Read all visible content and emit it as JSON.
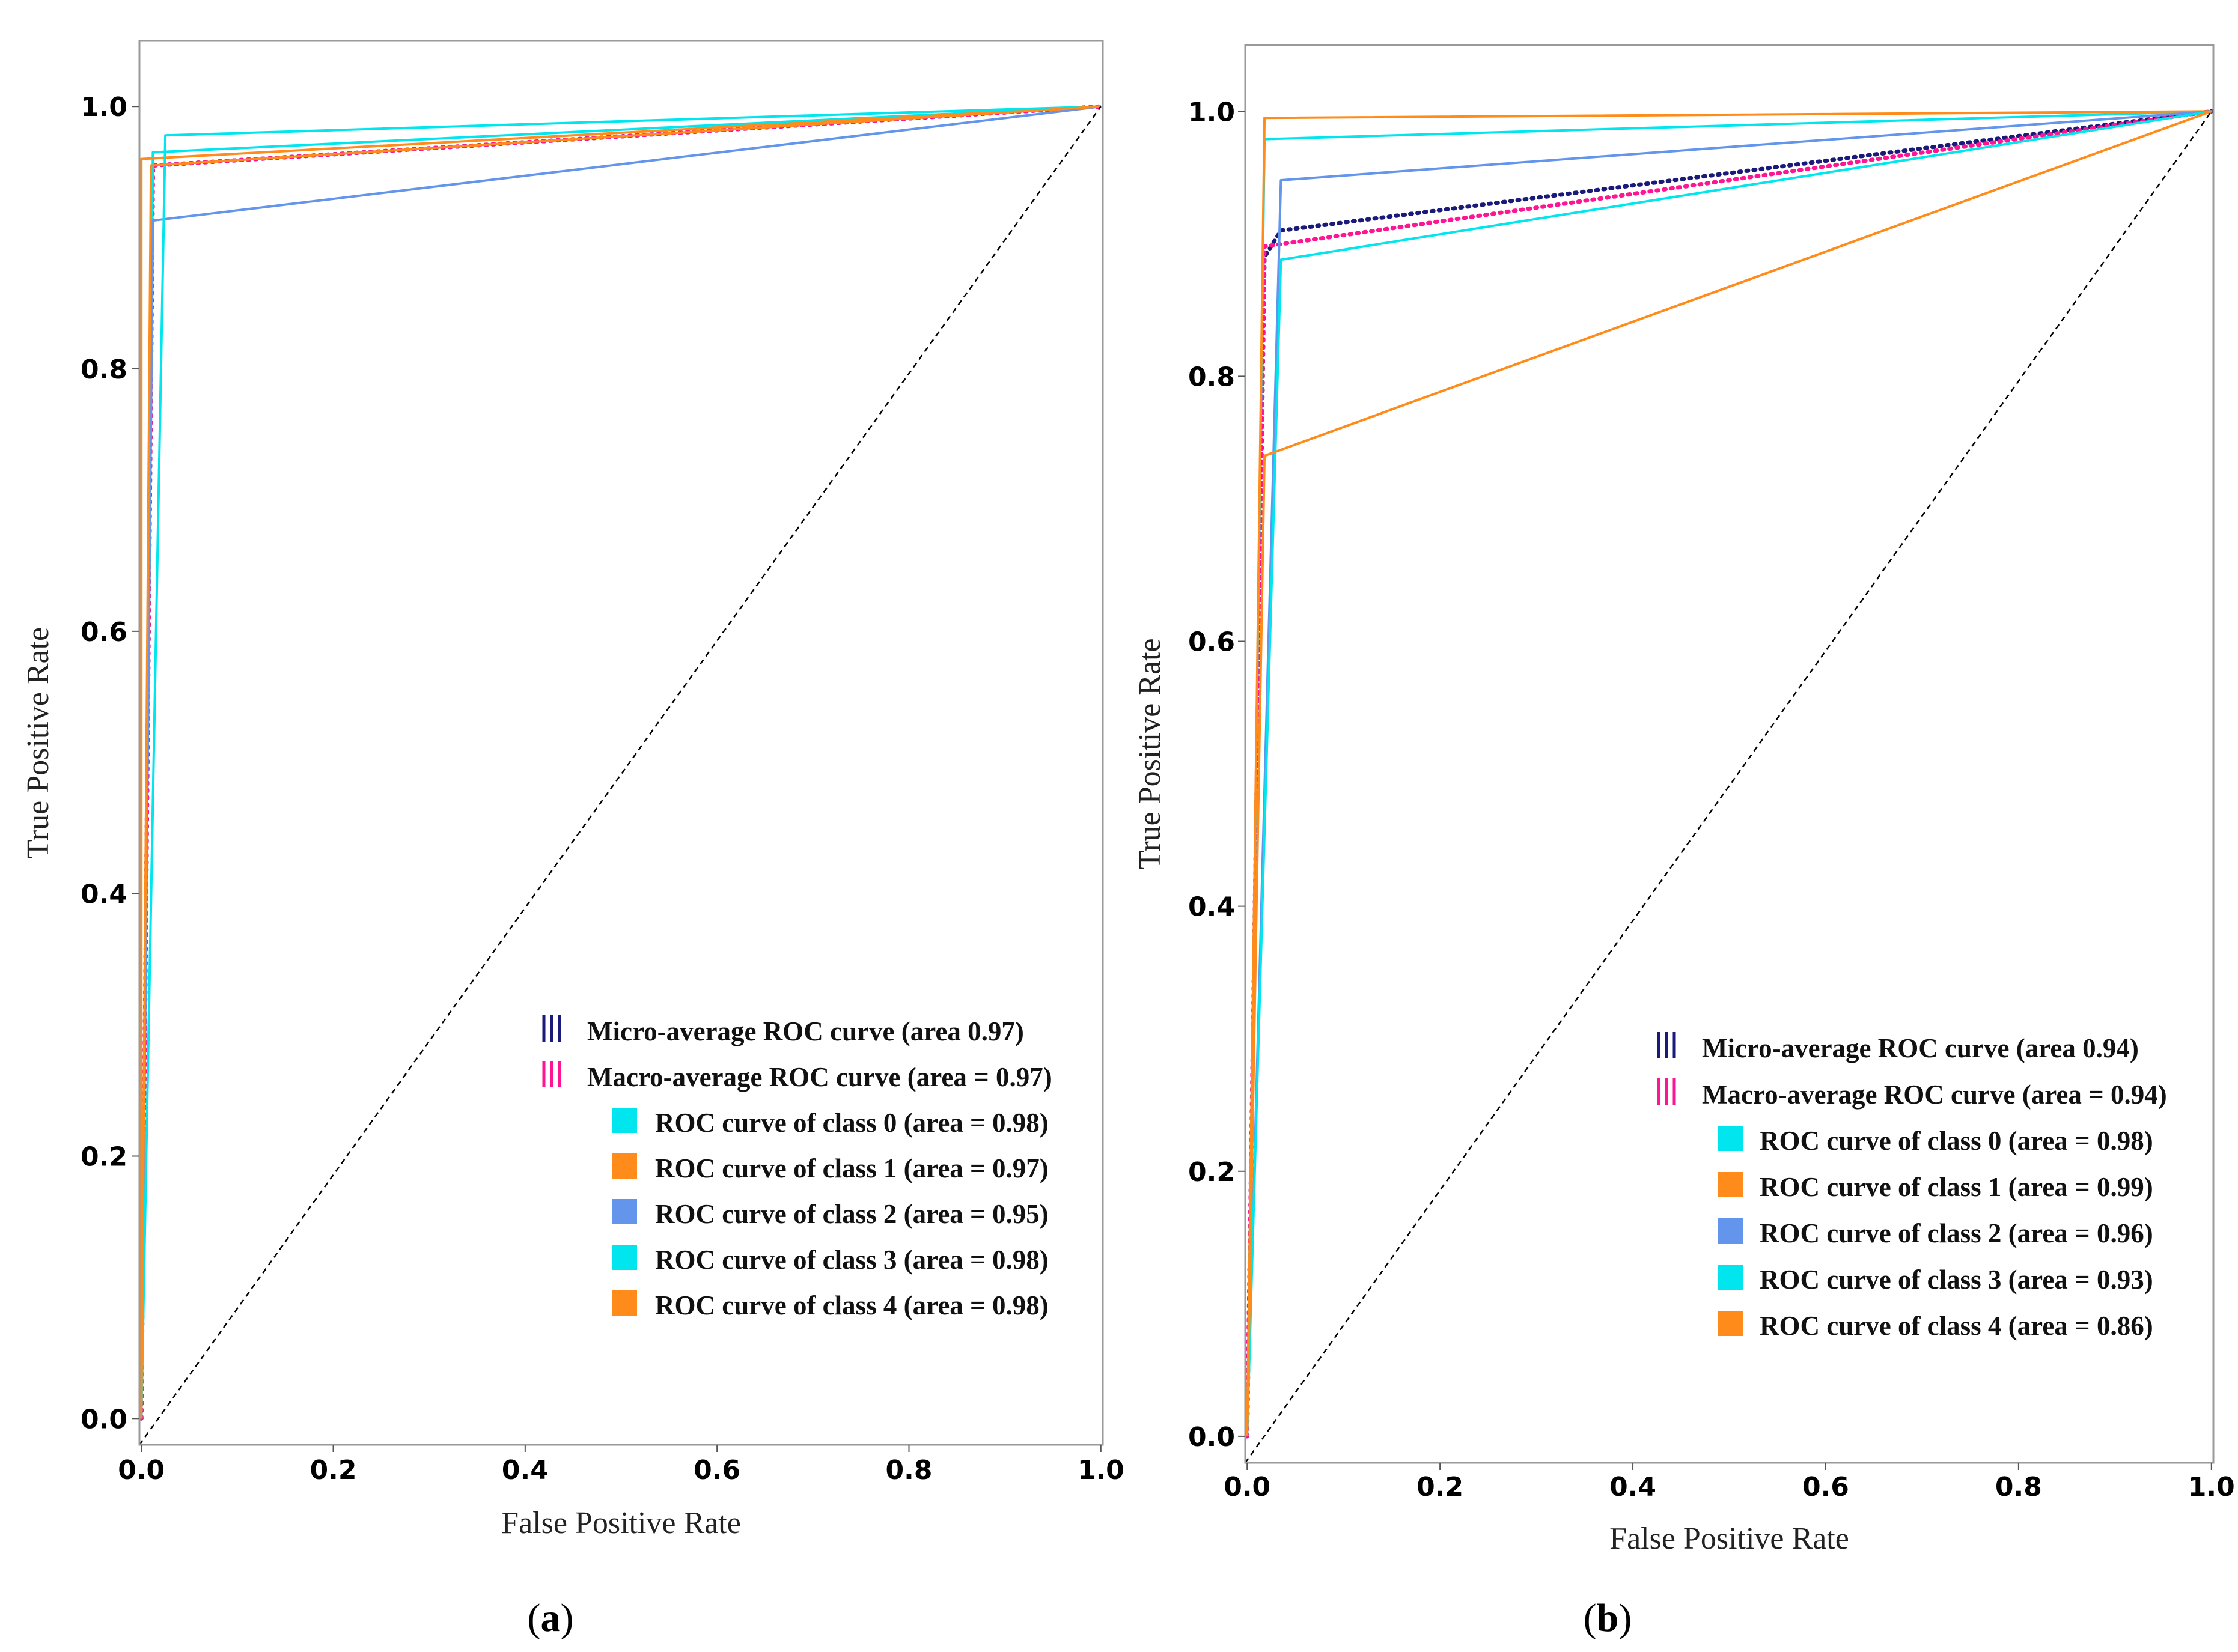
{
  "chart_data": [
    {
      "type": "line",
      "panel": "a",
      "caption_letter": "a",
      "xlabel": "False Positive Rate",
      "ylabel": "True Positive Rate",
      "xlim": [
        -0.002,
        1.002
      ],
      "ylim": [
        -0.02,
        1.05
      ],
      "xticks": [
        0.0,
        0.2,
        0.4,
        0.6,
        0.8,
        1.0
      ],
      "yticks": [
        0.0,
        0.2,
        0.4,
        0.6,
        0.8,
        1.0
      ],
      "grid": false,
      "legend_position": "lower-right",
      "series": [
        {
          "name": "Micro-average ROC curve (area 0.97)",
          "color": "#1a1a7a",
          "style": "dotted",
          "legend": "Micro-average ROC curve (area 0.97)",
          "x": [
            0.0,
            0.0,
            0.012,
            0.012,
            1.0
          ],
          "y": [
            0.0,
            0.0,
            0.95,
            0.955,
            1.0
          ]
        },
        {
          "name": "Macro-average ROC curve (area = 0.97)",
          "color": "#ff1493",
          "style": "dotted",
          "legend": "Macro-average ROC curve (area = 0.97)",
          "x": [
            0.0,
            0.012,
            1.0
          ],
          "y": [
            0.0,
            0.955,
            1.0
          ]
        },
        {
          "name": "ROC curve of class 0 (area = 0.98)",
          "color": "#00e5ee",
          "style": "solid",
          "legend": "ROC curve of class 0 (area = 0.98)",
          "x": [
            0.0,
            0.012,
            1.0
          ],
          "y": [
            0.0,
            0.965,
            1.0
          ]
        },
        {
          "name": "ROC curve of class 1 (area = 0.97)",
          "color": "#ff8c1a",
          "style": "solid",
          "legend": "ROC curve of class 1 (area = 0.97)",
          "x": [
            0.0,
            0.0,
            0.0,
            1.0
          ],
          "y": [
            0.0,
            0.96,
            0.96,
            1.0
          ]
        },
        {
          "name": "ROC curve of class 2 (area = 0.95)",
          "color": "#6495ed",
          "style": "solid",
          "legend": "ROC curve of class 2 (area = 0.95)",
          "x": [
            0.0,
            0.012,
            1.0
          ],
          "y": [
            0.0,
            0.913,
            1.0
          ]
        },
        {
          "name": "ROC curve of class 3 (area = 0.98)",
          "color": "#00e5ee",
          "style": "solid",
          "legend": "ROC curve of class 3 (area = 0.98)",
          "x": [
            0.0,
            0.025,
            1.0
          ],
          "y": [
            0.0,
            0.978,
            1.0
          ]
        },
        {
          "name": "ROC curve of class 4 (area = 0.98)",
          "color": "#ff8c1a",
          "style": "solid",
          "legend": "ROC curve of class 4 (area = 0.98)",
          "x": [
            0.0,
            0.01,
            1.0
          ],
          "y": [
            0.0,
            0.955,
            1.0
          ]
        },
        {
          "name": "chance",
          "color": "#000000",
          "style": "dashed",
          "legend": "",
          "x": [
            -0.002,
            1.0
          ],
          "y": [
            -0.02,
            1.0
          ]
        }
      ]
    },
    {
      "type": "line",
      "panel": "b",
      "caption_letter": "b",
      "xlabel": "False Positive Rate",
      "ylabel": "True Positive Rate",
      "xlim": [
        -0.002,
        1.002
      ],
      "ylim": [
        -0.02,
        1.05
      ],
      "xticks": [
        0.0,
        0.2,
        0.4,
        0.6,
        0.8,
        1.0
      ],
      "yticks": [
        0.0,
        0.2,
        0.4,
        0.6,
        0.8,
        1.0
      ],
      "grid": false,
      "legend_position": "lower-right",
      "series": [
        {
          "name": "Micro-average ROC curve (area 0.94)",
          "color": "#1a1a7a",
          "style": "dotted",
          "legend": "Micro-average ROC curve (area 0.94)",
          "x": [
            0.0,
            0.018,
            0.035,
            1.0
          ],
          "y": [
            0.0,
            0.89,
            0.91,
            1.0
          ]
        },
        {
          "name": "Macro-average ROC curve (area = 0.94)",
          "color": "#ff1493",
          "style": "dotted",
          "legend": "Macro-average ROC curve (area = 0.94)",
          "x": [
            0.0,
            0.018,
            1.0
          ],
          "y": [
            0.0,
            0.898,
            1.0
          ]
        },
        {
          "name": "ROC curve of class 0 (area = 0.98)",
          "color": "#00e5ee",
          "style": "solid",
          "legend": "ROC curve of class 0 (area = 0.98)",
          "x": [
            0.0,
            0.018,
            1.0
          ],
          "y": [
            0.0,
            0.979,
            1.0
          ]
        },
        {
          "name": "ROC curve of class 1 (area = 0.99)",
          "color": "#ff8c1a",
          "style": "solid",
          "legend": "ROC curve of class 1 (area = 0.99)",
          "x": [
            0.0,
            0.018,
            1.0
          ],
          "y": [
            0.0,
            0.995,
            1.0
          ]
        },
        {
          "name": "ROC curve of class 2 (area = 0.96)",
          "color": "#6495ed",
          "style": "solid",
          "legend": "ROC curve of class 2 (area = 0.96)",
          "x": [
            0.0,
            0.035,
            1.0
          ],
          "y": [
            0.0,
            0.948,
            1.0
          ]
        },
        {
          "name": "ROC curve of class 3 (area = 0.93)",
          "color": "#00e5ee",
          "style": "solid",
          "legend": "ROC curve of class 3 (area = 0.93)",
          "x": [
            0.0,
            0.035,
            1.0
          ],
          "y": [
            0.0,
            0.888,
            1.0
          ]
        },
        {
          "name": "ROC curve of class 4 (area = 0.86)",
          "color": "#ff8c1a",
          "style": "solid",
          "legend": "ROC curve of class 4 (area = 0.86)",
          "x": [
            0.0,
            0.018,
            1.0
          ],
          "y": [
            0.0,
            0.74,
            1.0
          ]
        },
        {
          "name": "chance",
          "color": "#000000",
          "style": "dashed",
          "legend": "",
          "x": [
            -0.002,
            1.0
          ],
          "y": [
            -0.02,
            1.0
          ]
        }
      ]
    }
  ]
}
